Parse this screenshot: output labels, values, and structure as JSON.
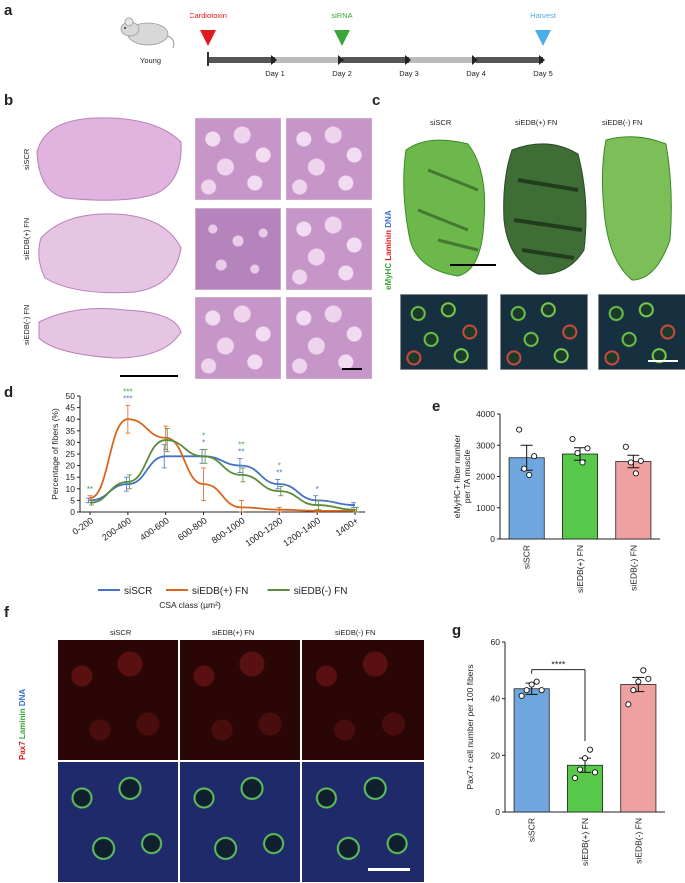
{
  "panels": {
    "a": {
      "letter": "a",
      "mouse_label": "Young",
      "events": [
        {
          "label": "Cardiotoxin",
          "color": "#e0191b",
          "day_pos": 0
        },
        {
          "label": "siRNA",
          "color": "#3aa63a",
          "day_pos": 2
        },
        {
          "label": "Harvest",
          "color": "#4aaee8",
          "day_pos": 5
        }
      ],
      "days": [
        "Day 1",
        "Day 2",
        "Day 3",
        "Day 4",
        "Day 5"
      ],
      "colors": {
        "dark": "#555555",
        "light": "#bbbbbb"
      }
    },
    "b": {
      "letter": "b",
      "rows": [
        "siSCR",
        "siEDB(+) FN",
        "siEDB(-) FN"
      ]
    },
    "c": {
      "letter": "c",
      "columns": [
        "siSCR",
        "siEDB(+) FN",
        "siEDB(-) FN"
      ],
      "stain_label": {
        "green": "eMyHC",
        "red": "Laminin",
        "blue": "DNA"
      },
      "stain_colors": {
        "green": "#3aa63a",
        "red": "#e0191b",
        "blue": "#3a6ecf"
      }
    },
    "d": {
      "letter": "d"
    },
    "e": {
      "letter": "e"
    },
    "f": {
      "letter": "f",
      "columns": [
        "siSCR",
        "siEDB(+) FN",
        "siEDB(-) FN"
      ],
      "stain_label": {
        "red": "Pax7",
        "green": "Laminin",
        "blue": "DNA"
      }
    },
    "g": {
      "letter": "g"
    }
  },
  "chart_data": [
    {
      "id": "d",
      "type": "line",
      "categories": [
        "0-200",
        "200-400",
        "400-600",
        "600-800",
        "800-1000",
        "1000-1200",
        "1200-1400",
        "1400+"
      ],
      "ylabel": "Percentage of fibers (%)",
      "xlabel": "CSA class (µm²)",
      "ylim": [
        0,
        50
      ],
      "yticks": [
        0,
        5,
        10,
        15,
        20,
        25,
        30,
        35,
        40,
        45,
        50
      ],
      "series": [
        {
          "name": "siSCR",
          "color": "#4472c4",
          "values": [
            5,
            12,
            24,
            24,
            20,
            12,
            5,
            3
          ],
          "errors": [
            1,
            3,
            5,
            3,
            3,
            2,
            2,
            1
          ]
        },
        {
          "name": "siEDB(+) FN",
          "color": "#d9661e",
          "values": [
            6,
            40,
            32,
            12,
            2,
            1,
            0.5,
            0.5
          ],
          "errors": [
            1,
            6,
            5,
            7,
            3,
            1,
            0.5,
            0.5
          ]
        },
        {
          "name": "siEDB(-) FN",
          "color": "#5a8c3a",
          "values": [
            4,
            13,
            31,
            24,
            16,
            9,
            3,
            1
          ],
          "errors": [
            1,
            3,
            5,
            3,
            3,
            2,
            2,
            1
          ]
        }
      ],
      "significance": [
        {
          "category": "0-200",
          "color": "#3aa63a",
          "text": "**"
        },
        {
          "category": "200-400",
          "color": "#4472c4",
          "text": "***"
        },
        {
          "category": "200-400",
          "color": "#3aa63a",
          "text": "***"
        },
        {
          "category": "600-800",
          "color": "#4472c4",
          "text": "*"
        },
        {
          "category": "600-800",
          "color": "#3aa63a",
          "text": "*"
        },
        {
          "category": "800-1000",
          "color": "#4472c4",
          "text": "**"
        },
        {
          "category": "800-1000",
          "color": "#3aa63a",
          "text": "**"
        },
        {
          "category": "1000-1200",
          "color": "#4472c4",
          "text": "**"
        },
        {
          "category": "1000-1200",
          "color": "#3aa63a",
          "text": "*"
        },
        {
          "category": "1200-1400",
          "color": "#4472c4",
          "text": "*"
        }
      ],
      "legend": "bottom"
    },
    {
      "id": "e",
      "type": "bar",
      "categories": [
        "siSCR",
        "siEDB(+) FN",
        "siEDB(-) FN"
      ],
      "values": [
        2600,
        2720,
        2480
      ],
      "errors": [
        400,
        200,
        200
      ],
      "points": [
        [
          3500,
          2250,
          2050,
          2650
        ],
        [
          3200,
          2750,
          2450,
          2900
        ],
        [
          2950,
          2450,
          2100,
          2500
        ]
      ],
      "colors": [
        "#6fa6dd",
        "#57c84a",
        "#efa0a0"
      ],
      "ylabel": "eMyHC+ fiber number per TA muscle",
      "ylim": [
        0,
        4000
      ],
      "yticks": [
        0,
        1000,
        2000,
        3000,
        4000
      ]
    },
    {
      "id": "g",
      "type": "bar",
      "categories": [
        "siSCR",
        "siEDB(+) FN",
        "siEDB(-) FN"
      ],
      "values": [
        43.5,
        16.5,
        45
      ],
      "errors": [
        2,
        2.5,
        2.5
      ],
      "points": [
        [
          41,
          43,
          45,
          46,
          43
        ],
        [
          12,
          15,
          19,
          22,
          14
        ],
        [
          38,
          43,
          46,
          50,
          47
        ]
      ],
      "colors": [
        "#6fa6dd",
        "#57c84a",
        "#efa0a0"
      ],
      "ylabel": "Pax7+ cell number per 100 fibers",
      "ylim": [
        0,
        60
      ],
      "yticks": [
        0,
        20,
        40,
        60
      ],
      "significance": {
        "from": "siSCR",
        "to": "siEDB(+) FN",
        "text": "****"
      }
    }
  ]
}
